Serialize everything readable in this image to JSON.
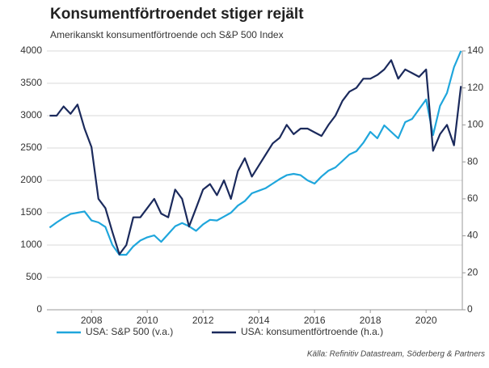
{
  "chart_data": {
    "type": "line",
    "title": "Konsumentförtroendet stiger rejält",
    "subtitle": "Amerikanskt konsumentförtroende och S&P 500 Index",
    "source": "Källa: Refinitiv Datastream, Söderberg & Partners",
    "x": [
      2006.5,
      2006.75,
      2007,
      2007.25,
      2007.5,
      2007.75,
      2008,
      2008.25,
      2008.5,
      2008.75,
      2009,
      2009.25,
      2009.5,
      2009.75,
      2010,
      2010.25,
      2010.5,
      2010.75,
      2011,
      2011.25,
      2011.5,
      2011.75,
      2012,
      2012.25,
      2012.5,
      2012.75,
      2013,
      2013.25,
      2013.5,
      2013.75,
      2014,
      2014.25,
      2014.5,
      2014.75,
      2015,
      2015.25,
      2015.5,
      2015.75,
      2016,
      2016.25,
      2016.5,
      2016.75,
      2017,
      2017.25,
      2017.5,
      2017.75,
      2018,
      2018.25,
      2018.5,
      2018.75,
      2019,
      2019.25,
      2019.5,
      2019.75,
      2020,
      2020.25,
      2020.5,
      2020.75,
      2021,
      2021.25
    ],
    "series": [
      {
        "name": "USA: S&P 500 (v.a.)",
        "color": "#1fa6dc",
        "axis": "y",
        "values": [
          1270,
          1350,
          1420,
          1480,
          1500,
          1520,
          1380,
          1350,
          1280,
          1000,
          850,
          850,
          980,
          1070,
          1120,
          1150,
          1050,
          1170,
          1290,
          1340,
          1290,
          1220,
          1320,
          1390,
          1380,
          1440,
          1500,
          1610,
          1680,
          1800,
          1840,
          1880,
          1950,
          2020,
          2080,
          2100,
          2080,
          2000,
          1950,
          2060,
          2150,
          2200,
          2300,
          2400,
          2450,
          2580,
          2750,
          2650,
          2850,
          2750,
          2650,
          2900,
          2950,
          3100,
          3250,
          2700,
          3150,
          3350,
          3750,
          4000
        ]
      },
      {
        "name": "USA: konsumentförtroende (h.a.)",
        "color": "#1b2a5c",
        "axis": "y2",
        "values": [
          105,
          105,
          110,
          106,
          111,
          98,
          88,
          60,
          55,
          42,
          30,
          35,
          50,
          50,
          55,
          60,
          52,
          50,
          65,
          60,
          45,
          55,
          65,
          68,
          62,
          70,
          60,
          75,
          82,
          72,
          78,
          84,
          90,
          93,
          100,
          95,
          98,
          98,
          96,
          94,
          100,
          105,
          113,
          118,
          120,
          125,
          125,
          127,
          130,
          135,
          125,
          130,
          128,
          126,
          130,
          86,
          95,
          100,
          89,
          121
        ]
      }
    ],
    "xlim": [
      2006.4,
      2021.3
    ],
    "xticks": [
      2008,
      2010,
      2012,
      2014,
      2016,
      2018,
      2020
    ],
    "ylim": [
      0,
      4000
    ],
    "yticks": [
      0,
      500,
      1000,
      1500,
      2000,
      2500,
      3000,
      3500,
      4000
    ],
    "y2lim": [
      0,
      140
    ],
    "y2ticks": [
      0,
      20,
      40,
      60,
      80,
      100,
      120,
      140
    ],
    "grid": true,
    "legend": "bottom"
  }
}
